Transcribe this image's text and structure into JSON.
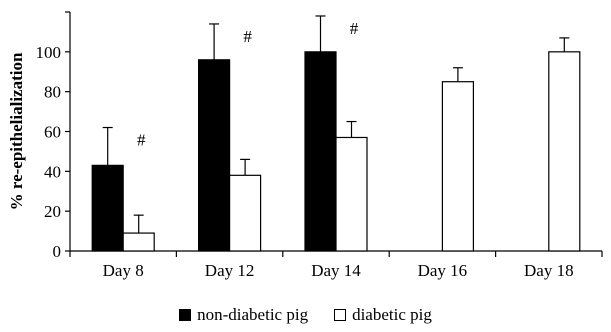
{
  "chart_data": {
    "type": "bar",
    "title": "",
    "xlabel": "",
    "ylabel": "% re-epithelialization",
    "ylim": [
      0,
      120
    ],
    "yticks": [
      0,
      20,
      40,
      60,
      80,
      100
    ],
    "categories": [
      "Day 8",
      "Day 12",
      "Day 14",
      "Day 16",
      "Day 18"
    ],
    "series": [
      {
        "name": "non-diabetic pig",
        "color": "#000000",
        "values": [
          43,
          96,
          100,
          null,
          null
        ],
        "error": [
          19,
          18,
          18,
          null,
          null
        ]
      },
      {
        "name": "diabetic pig",
        "color": "#ffffff",
        "values": [
          9,
          38,
          57,
          85,
          100
        ],
        "error": [
          9,
          8,
          8,
          7,
          7
        ]
      }
    ],
    "annotations": [
      {
        "category": "Day 8",
        "text": "#"
      },
      {
        "category": "Day 12",
        "text": "#"
      },
      {
        "category": "Day 14",
        "text": "#"
      }
    ],
    "grid": false,
    "legend_position": "bottom"
  }
}
